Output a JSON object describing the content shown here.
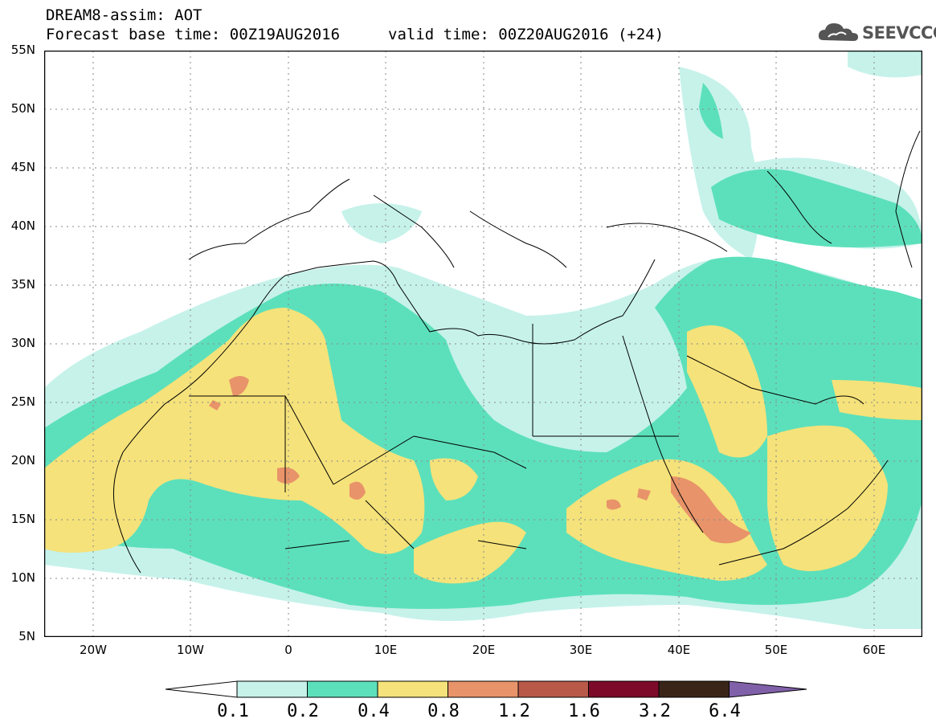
{
  "header": {
    "title_line": "DREAM8-assim: AOT",
    "base_time": "Forecast base time: 00Z19AUG2016",
    "valid_time": "valid time: 00Z20AUG2016 (+24)"
  },
  "logo": {
    "text": "SEEVCCC",
    "icon": "cloud-icon"
  },
  "map": {
    "y_labels": [
      "55N",
      "50N",
      "45N",
      "40N",
      "35N",
      "30N",
      "25N",
      "20N",
      "15N",
      "10N",
      "5N"
    ],
    "x_labels": [
      "20W",
      "10W",
      "0",
      "10E",
      "20E",
      "30E",
      "40E",
      "50E",
      "60E"
    ],
    "lon_range": [
      -25,
      65
    ],
    "lat_range": [
      5,
      55
    ],
    "grid": true
  },
  "colorbar": {
    "labels": [
      "0.1",
      "0.2",
      "0.4",
      "0.8",
      "1.2",
      "1.6",
      "3.2",
      "6.4"
    ],
    "colors": [
      "#ffffff",
      "#c6f2ea",
      "#5ce0bb",
      "#f5e27a",
      "#e8936a",
      "#b8594a",
      "#7d0a28",
      "#3a2418",
      "#8060a8"
    ]
  }
}
